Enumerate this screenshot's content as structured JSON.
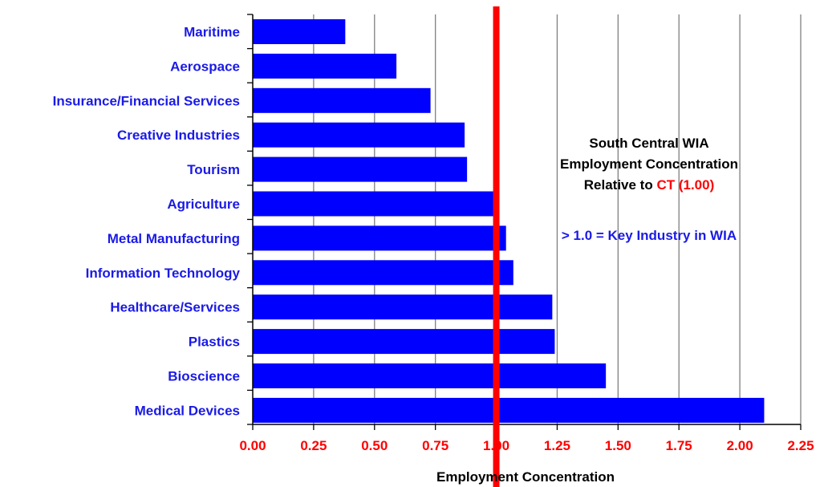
{
  "chart_data": {
    "type": "bar",
    "orientation": "horizontal",
    "categories": [
      "Maritime",
      "Aerospace",
      "Insurance/Financial Services",
      "Creative Industries",
      "Tourism",
      "Agriculture",
      "Metal Manufacturing",
      "Information Technology",
      "Healthcare/Services",
      "Plastics",
      "Bioscience",
      "Medical Devices"
    ],
    "values": [
      0.38,
      0.59,
      0.73,
      0.87,
      0.88,
      0.99,
      1.04,
      1.07,
      1.23,
      1.24,
      1.45,
      2.1
    ],
    "title": "",
    "xlabel": "Employment Concentration",
    "ylabel": "",
    "xlim": [
      0,
      2.25
    ],
    "x_ticks": [
      "0.00",
      "0.25",
      "0.50",
      "0.75",
      "1.00",
      "1.25",
      "1.50",
      "1.75",
      "2.00",
      "2.25"
    ],
    "grid": "vertical",
    "reference_line": {
      "value": 1.0,
      "color": "#ff0000"
    },
    "bar_color": "#0000ff",
    "annotation": {
      "line1": "South Central WIA",
      "line2": "Employment Concentration",
      "line3_prefix": "Relative to ",
      "line3_highlight": "CT (1.00)",
      "key_note": "> 1.0 = Key Industry in WIA"
    }
  },
  "colors": {
    "bar": "#0000ff",
    "category_text": "#1a1ae6",
    "tick_text": "#ff0000",
    "reference_line": "#ff0000",
    "grid": "#808080"
  }
}
